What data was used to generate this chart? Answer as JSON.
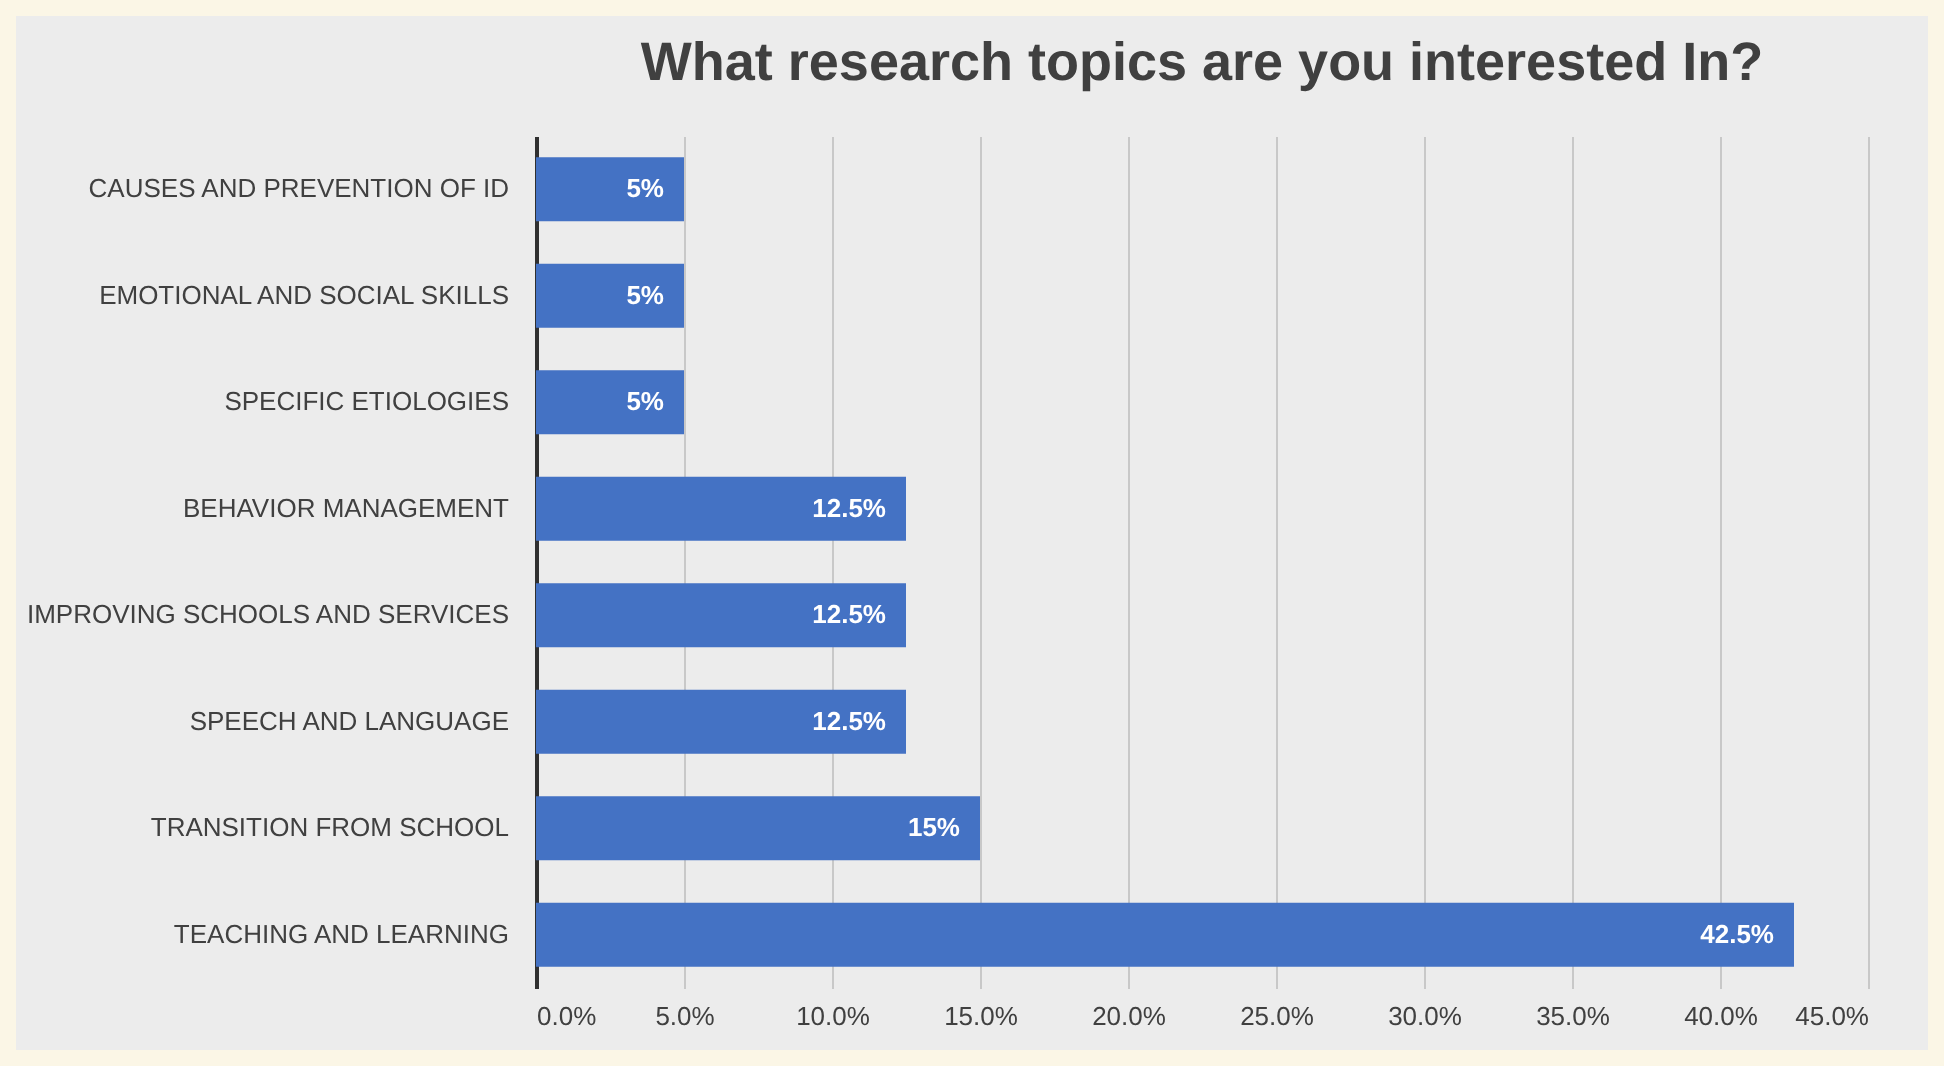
{
  "chart_data": {
    "type": "bar",
    "orientation": "horizontal",
    "title": "What research topics are you interested In?",
    "categories": [
      "CAUSES AND PREVENTION OF ID",
      "EMOTIONAL AND SOCIAL SKILLS",
      "SPECIFIC ETIOLOGIES",
      "BEHAVIOR MANAGEMENT",
      "IMPROVING SCHOOLS AND SERVICES",
      "SPEECH AND LANGUAGE",
      "TRANSITION FROM SCHOOL",
      "TEACHING AND LEARNING"
    ],
    "values": [
      5,
      5,
      5,
      12.5,
      12.5,
      12.5,
      15,
      42.5
    ],
    "value_labels": [
      "5%",
      "5%",
      "5%",
      "12.5%",
      "12.5%",
      "12.5%",
      "15%",
      "42.5%"
    ],
    "color": "#4472c4",
    "xlim": [
      0,
      45
    ],
    "xticks": [
      {
        "value": 0,
        "label": "0.0%"
      },
      {
        "value": 5,
        "label": "5.0%"
      },
      {
        "value": 10,
        "label": "10.0%"
      },
      {
        "value": 15,
        "label": "15.0%"
      },
      {
        "value": 20,
        "label": "20.0%"
      },
      {
        "value": 25,
        "label": "25.0%"
      },
      {
        "value": 30,
        "label": "30.0%"
      },
      {
        "value": 35,
        "label": "35.0%"
      },
      {
        "value": 40,
        "label": "40.0%"
      },
      {
        "value": 45,
        "label": "45.0%"
      }
    ],
    "grid": "x"
  }
}
